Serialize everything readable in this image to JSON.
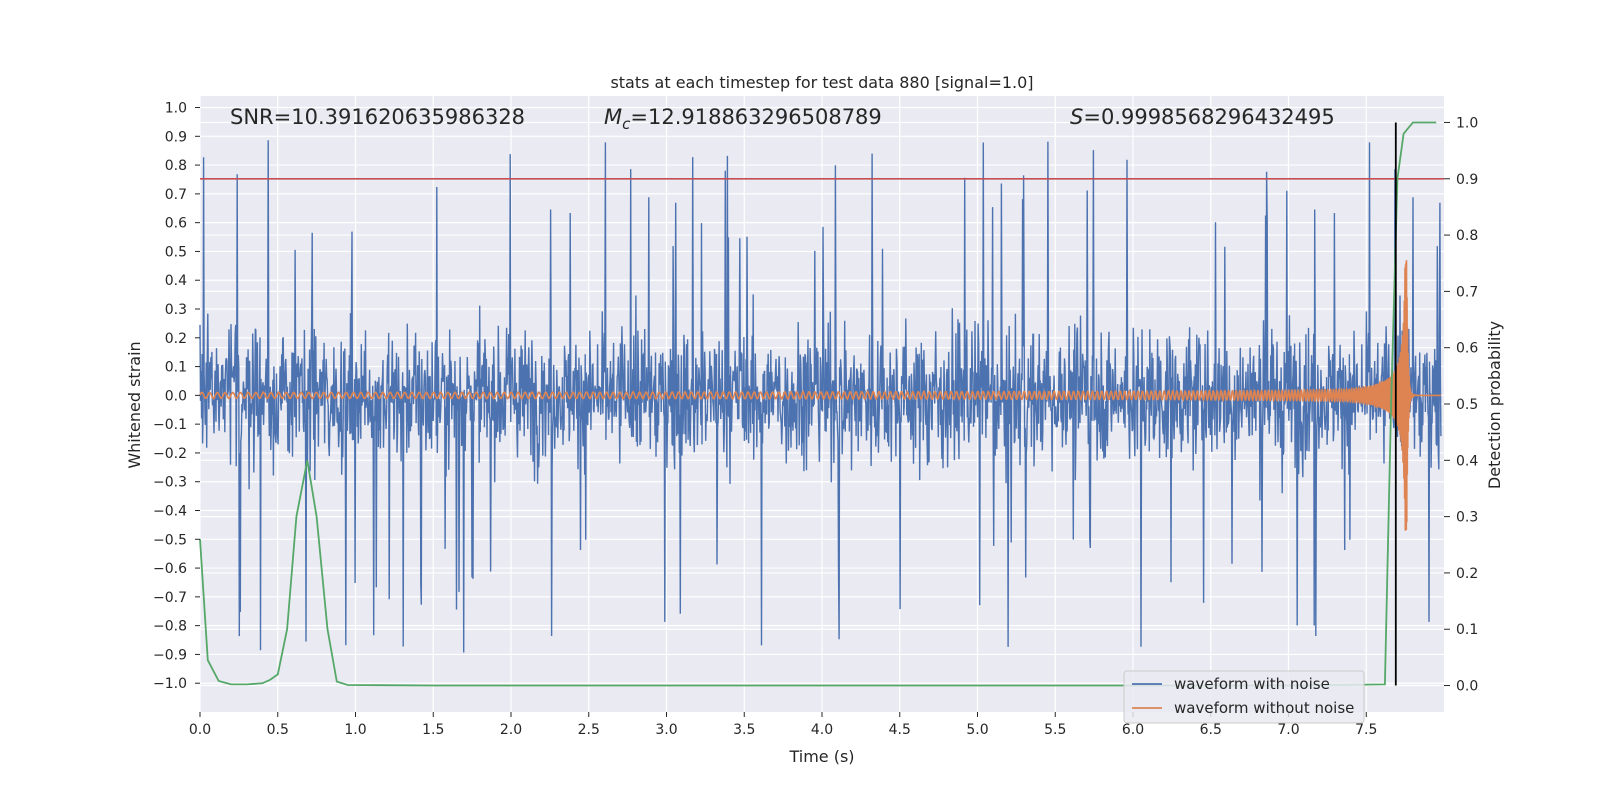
{
  "chart_data": {
    "type": "line",
    "title": "stats at each timestep for test data 880 [signal=1.0]",
    "xlabel": "Time (s)",
    "ylabel": "Whitened strain",
    "y2label": "Detection probability",
    "xlim": [
      0.0,
      8.0
    ],
    "ylim": [
      -1.1,
      1.04
    ],
    "y2lim": [
      -0.047,
      1.047
    ],
    "x_ticks": [
      0.0,
      0.5,
      1.0,
      1.5,
      2.0,
      2.5,
      3.0,
      3.5,
      4.0,
      4.5,
      5.0,
      5.5,
      6.0,
      6.5,
      7.0,
      7.5
    ],
    "y_ticks": [
      1.0,
      0.9,
      0.8,
      0.7,
      0.6,
      0.5,
      0.4,
      0.3,
      0.2,
      0.1,
      0.0,
      -0.1,
      -0.2,
      -0.3,
      -0.4,
      -0.5,
      -0.6,
      -0.7,
      -0.8,
      -0.9,
      -1.0
    ],
    "y2_ticks": [
      1.0,
      0.9,
      0.8,
      0.7,
      0.6,
      0.5,
      0.4,
      0.3,
      0.2,
      0.1,
      0.0
    ],
    "annotations": {
      "snr": "SNR=10.391620635986328",
      "mc_symbol": "M",
      "mc_subscript": "c",
      "mc_value": "=12.918863296508789",
      "s_symbol": "S",
      "s_value": "=0.9998568296432495"
    },
    "threshold": {
      "axis": "right",
      "value": 0.9,
      "color": "#c44e52"
    },
    "merger_time": 7.69,
    "series": [
      {
        "name": "waveform with noise",
        "color": "#4c72b0",
        "axis": "left",
        "kind": "noise",
        "upper_envelope_approx": 0.55,
        "lower_envelope_approx": -0.55,
        "max_spike": 0.93,
        "min_spike": -1.0
      },
      {
        "name": "waveform without noise",
        "color": "#dd8452",
        "axis": "left",
        "kind": "chirp",
        "start_amplitude": 0.01,
        "peak_amplitude": 0.47,
        "peak_time": 7.76,
        "end_time": 7.8
      },
      {
        "name": "detection probability",
        "color": "#55a868",
        "axis": "right",
        "kind": "line",
        "x": [
          0.0,
          0.05,
          0.12,
          0.2,
          0.3,
          0.4,
          0.45,
          0.5,
          0.56,
          0.62,
          0.69,
          0.75,
          0.82,
          0.88,
          0.95,
          1.5,
          3.0,
          5.0,
          7.0,
          7.62,
          7.66,
          7.7,
          7.74,
          7.8,
          7.95
        ],
        "y": [
          0.26,
          0.045,
          0.008,
          0.002,
          0.002,
          0.004,
          0.01,
          0.02,
          0.1,
          0.3,
          0.4,
          0.3,
          0.1,
          0.007,
          0.001,
          0.0,
          0.0,
          0.0,
          0.0,
          0.002,
          0.5,
          0.9,
          0.98,
          1.0,
          1.0
        ]
      }
    ],
    "legend": {
      "placement": "lower-right",
      "entries": [
        "waveform with noise",
        "waveform without noise"
      ]
    }
  }
}
